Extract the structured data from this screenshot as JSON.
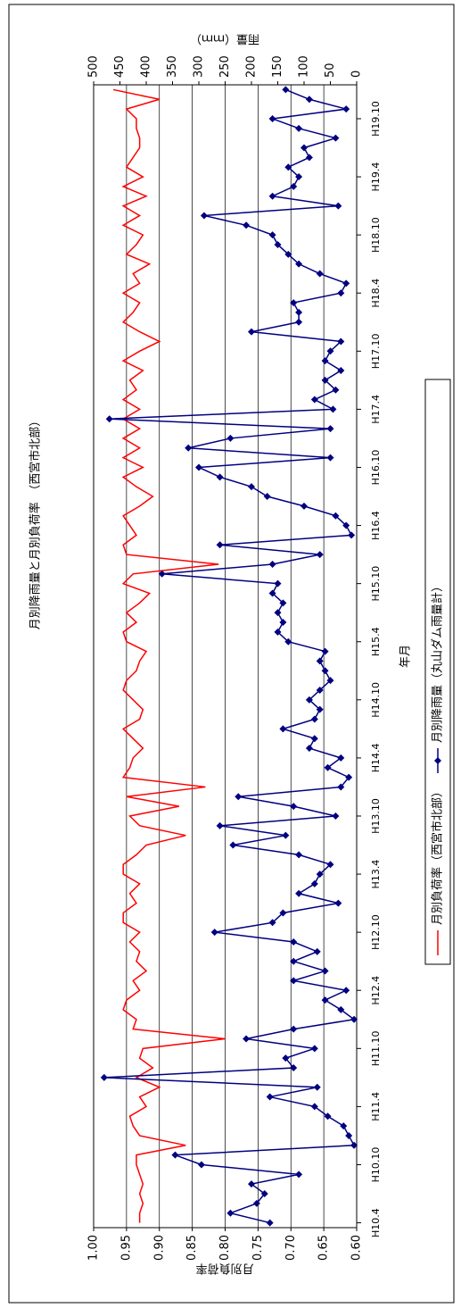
{
  "chart_data": {
    "type": "line",
    "title": "月別降雨量と月別負荷率　（西宮市北部）",
    "x_label": "年月",
    "y_label": "月別負荷率",
    "y2_label": "雨量（ｍｍ）",
    "categories": [
      "H10.4",
      null,
      null,
      null,
      null,
      null,
      "H10.10",
      null,
      null,
      null,
      null,
      null,
      "H11.4",
      null,
      null,
      null,
      null,
      null,
      "H11.10",
      null,
      null,
      null,
      null,
      null,
      "H12.4",
      null,
      null,
      null,
      null,
      null,
      "H12.10",
      null,
      null,
      null,
      null,
      null,
      "H13.4",
      null,
      null,
      null,
      null,
      null,
      "H13.10",
      null,
      null,
      null,
      null,
      null,
      "H14.4",
      null,
      null,
      null,
      null,
      null,
      "H14.10",
      null,
      null,
      null,
      null,
      null,
      "H15.4",
      null,
      null,
      null,
      null,
      null,
      "H15.10",
      null,
      null,
      null,
      null,
      null,
      "H16.4",
      null,
      null,
      null,
      null,
      null,
      "H16.10",
      null,
      null,
      null,
      null,
      null,
      "H17.4",
      null,
      null,
      null,
      null,
      null,
      "H17.10",
      null,
      null,
      null,
      null,
      null,
      "H18.4",
      null,
      null,
      null,
      null,
      null,
      "H18.10",
      null,
      null,
      null,
      null,
      null,
      "H19.4",
      null,
      null,
      null,
      null,
      null,
      "H19.10",
      null,
      null,
      null
    ],
    "series": [
      {
        "name": "月別負荷率（西宮市北部）",
        "color": "#ff0000",
        "marker": false,
        "values": [
          0.93,
          0.93,
          0.925,
          0.93,
          0.925,
          0.93,
          0.935,
          0.935,
          0.86,
          0.93,
          0.94,
          0.945,
          0.92,
          0.93,
          0.9,
          0.935,
          0.91,
          0.93,
          0.925,
          0.8,
          0.94,
          0.935,
          0.955,
          0.95,
          0.93,
          0.94,
          0.92,
          0.935,
          0.93,
          0.945,
          0.93,
          0.955,
          0.955,
          0.935,
          0.945,
          0.93,
          0.955,
          0.955,
          0.935,
          0.92,
          0.86,
          0.93,
          0.945,
          0.87,
          0.95,
          0.83,
          0.955,
          0.945,
          0.94,
          0.925,
          0.94,
          0.955,
          0.93,
          0.925,
          0.94,
          0.955,
          0.95,
          0.935,
          0.93,
          0.92,
          0.95,
          0.955,
          0.935,
          0.95,
          0.93,
          0.915,
          0.955,
          0.94,
          0.81,
          0.95,
          0.955,
          0.935,
          0.945,
          0.955,
          0.93,
          0.91,
          0.935,
          0.955,
          0.925,
          0.955,
          0.93,
          0.955,
          0.93,
          0.955,
          0.93,
          0.955,
          0.935,
          0.945,
          0.925,
          0.955,
          0.93,
          0.9,
          0.93,
          0.955,
          0.94,
          0.93,
          0.955,
          0.93,
          0.94,
          0.915,
          0.95,
          0.935,
          0.925,
          0.955,
          0.93,
          0.955,
          0.92,
          0.955,
          0.925,
          0.95,
          0.94,
          0.93,
          0.93,
          0.935,
          0.935,
          0.95,
          0.9,
          0.97
        ]
      },
      {
        "name": "月別降雨量（丸山ダム雨量計）",
        "color": "#000080",
        "marker": true,
        "axis": "y2",
        "values": [
          165,
          240,
          190,
          175,
          200,
          110,
          295,
          345,
          5,
          15,
          25,
          55,
          80,
          165,
          75,
          480,
          120,
          135,
          80,
          210,
          120,
          5,
          30,
          60,
          20,
          120,
          60,
          120,
          75,
          120,
          270,
          160,
          140,
          35,
          110,
          80,
          70,
          50,
          110,
          235,
          135,
          260,
          40,
          120,
          225,
          30,
          15,
          55,
          30,
          90,
          80,
          140,
          80,
          70,
          90,
          70,
          50,
          60,
          70,
          60,
          130,
          150,
          140,
          150,
          140,
          160,
          150,
          370,
          160,
          70,
          260,
          10,
          20,
          40,
          100,
          170,
          200,
          260,
          300,
          50,
          320,
          240,
          50,
          470,
          45,
          80,
          40,
          60,
          30,
          60,
          50,
          30,
          200,
          110,
          110,
          120,
          30,
          20,
          70,
          110,
          130,
          150,
          160,
          210,
          290,
          35,
          160,
          120,
          110,
          130,
          90,
          100,
          40,
          110,
          160,
          20,
          90,
          135
        ]
      }
    ],
    "ylim": [
      0.6,
      1.0
    ],
    "yticks": [
      {
        "value": 0.6,
        "label": "0.60"
      },
      0.65,
      {
        "value": 0.7,
        "label": "0.70"
      },
      0.75,
      {
        "value": 0.8,
        "label": "0.80"
      },
      0.85,
      {
        "value": 0.9,
        "label": "0.90"
      },
      0.95,
      {
        "value": 1.0,
        "label": "1.00"
      }
    ],
    "y2lim": [
      0,
      500
    ],
    "y2ticks": [
      0,
      50,
      100,
      150,
      200,
      250,
      300,
      350,
      400,
      450,
      500
    ],
    "grid": true
  }
}
